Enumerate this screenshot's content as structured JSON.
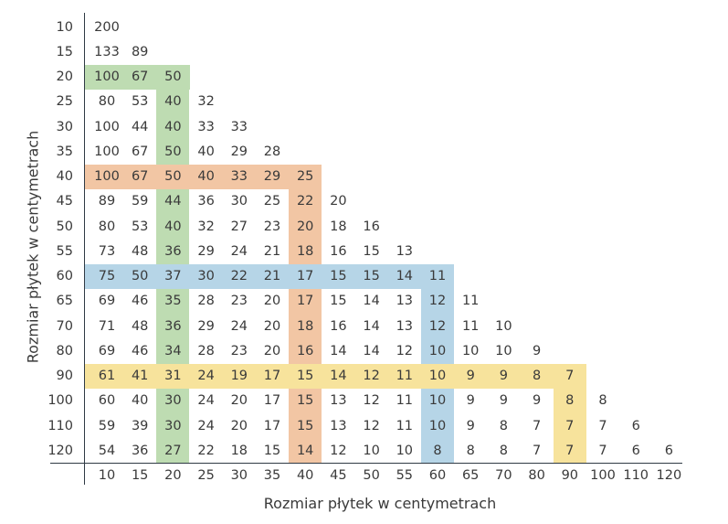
{
  "chart_data": {
    "type": "table",
    "xlabel": "Rozmiar płytek w centymetrach",
    "ylabel": "Rozmiar płytek w centymetrach",
    "columns": [
      "10",
      "15",
      "20",
      "25",
      "30",
      "35",
      "40",
      "45",
      "50",
      "55",
      "60",
      "65",
      "70",
      "80",
      "90",
      "100",
      "110",
      "120"
    ],
    "rows": [
      {
        "label": "10",
        "values": [
          200
        ]
      },
      {
        "label": "15",
        "values": [
          133,
          89
        ]
      },
      {
        "label": "20",
        "values": [
          100,
          67,
          50
        ]
      },
      {
        "label": "25",
        "values": [
          80,
          53,
          40,
          32
        ]
      },
      {
        "label": "30",
        "values": [
          100,
          44,
          40,
          33,
          33
        ]
      },
      {
        "label": "35",
        "values": [
          100,
          67,
          50,
          40,
          29,
          28
        ]
      },
      {
        "label": "40",
        "values": [
          100,
          67,
          50,
          40,
          33,
          29,
          25
        ]
      },
      {
        "label": "45",
        "values": [
          89,
          59,
          44,
          36,
          30,
          25,
          22,
          20
        ]
      },
      {
        "label": "50",
        "values": [
          80,
          53,
          40,
          32,
          27,
          23,
          20,
          18,
          16
        ]
      },
      {
        "label": "55",
        "values": [
          73,
          48,
          36,
          29,
          24,
          21,
          18,
          16,
          15,
          13
        ]
      },
      {
        "label": "60",
        "values": [
          75,
          50,
          37,
          30,
          22,
          21,
          17,
          15,
          15,
          14,
          11
        ]
      },
      {
        "label": "65",
        "values": [
          69,
          46,
          35,
          28,
          23,
          20,
          17,
          15,
          14,
          13,
          12,
          11
        ]
      },
      {
        "label": "70",
        "values": [
          71,
          48,
          36,
          29,
          24,
          20,
          18,
          16,
          14,
          13,
          12,
          11,
          10
        ]
      },
      {
        "label": "80",
        "values": [
          69,
          46,
          34,
          28,
          23,
          20,
          16,
          14,
          14,
          12,
          10,
          10,
          10,
          9
        ]
      },
      {
        "label": "90",
        "values": [
          61,
          41,
          31,
          24,
          19,
          17,
          15,
          14,
          12,
          11,
          10,
          9,
          9,
          8,
          7
        ]
      },
      {
        "label": "100",
        "values": [
          60,
          40,
          30,
          24,
          20,
          17,
          15,
          13,
          12,
          11,
          10,
          9,
          9,
          9,
          8,
          8
        ]
      },
      {
        "label": "110",
        "values": [
          59,
          39,
          30,
          24,
          20,
          17,
          15,
          13,
          12,
          11,
          10,
          9,
          8,
          7,
          7,
          7,
          6
        ]
      },
      {
        "label": "120",
        "values": [
          54,
          36,
          27,
          22,
          18,
          15,
          14,
          12,
          10,
          10,
          8,
          8,
          8,
          7,
          7,
          7,
          6,
          6
        ]
      }
    ],
    "highlights": [
      {
        "size": "20",
        "color": "#bedcb2"
      },
      {
        "size": "40",
        "color": "#f2c6a4"
      },
      {
        "size": "60",
        "color": "#b6d5e7"
      },
      {
        "size": "90",
        "color": "#f7e39c"
      }
    ]
  }
}
